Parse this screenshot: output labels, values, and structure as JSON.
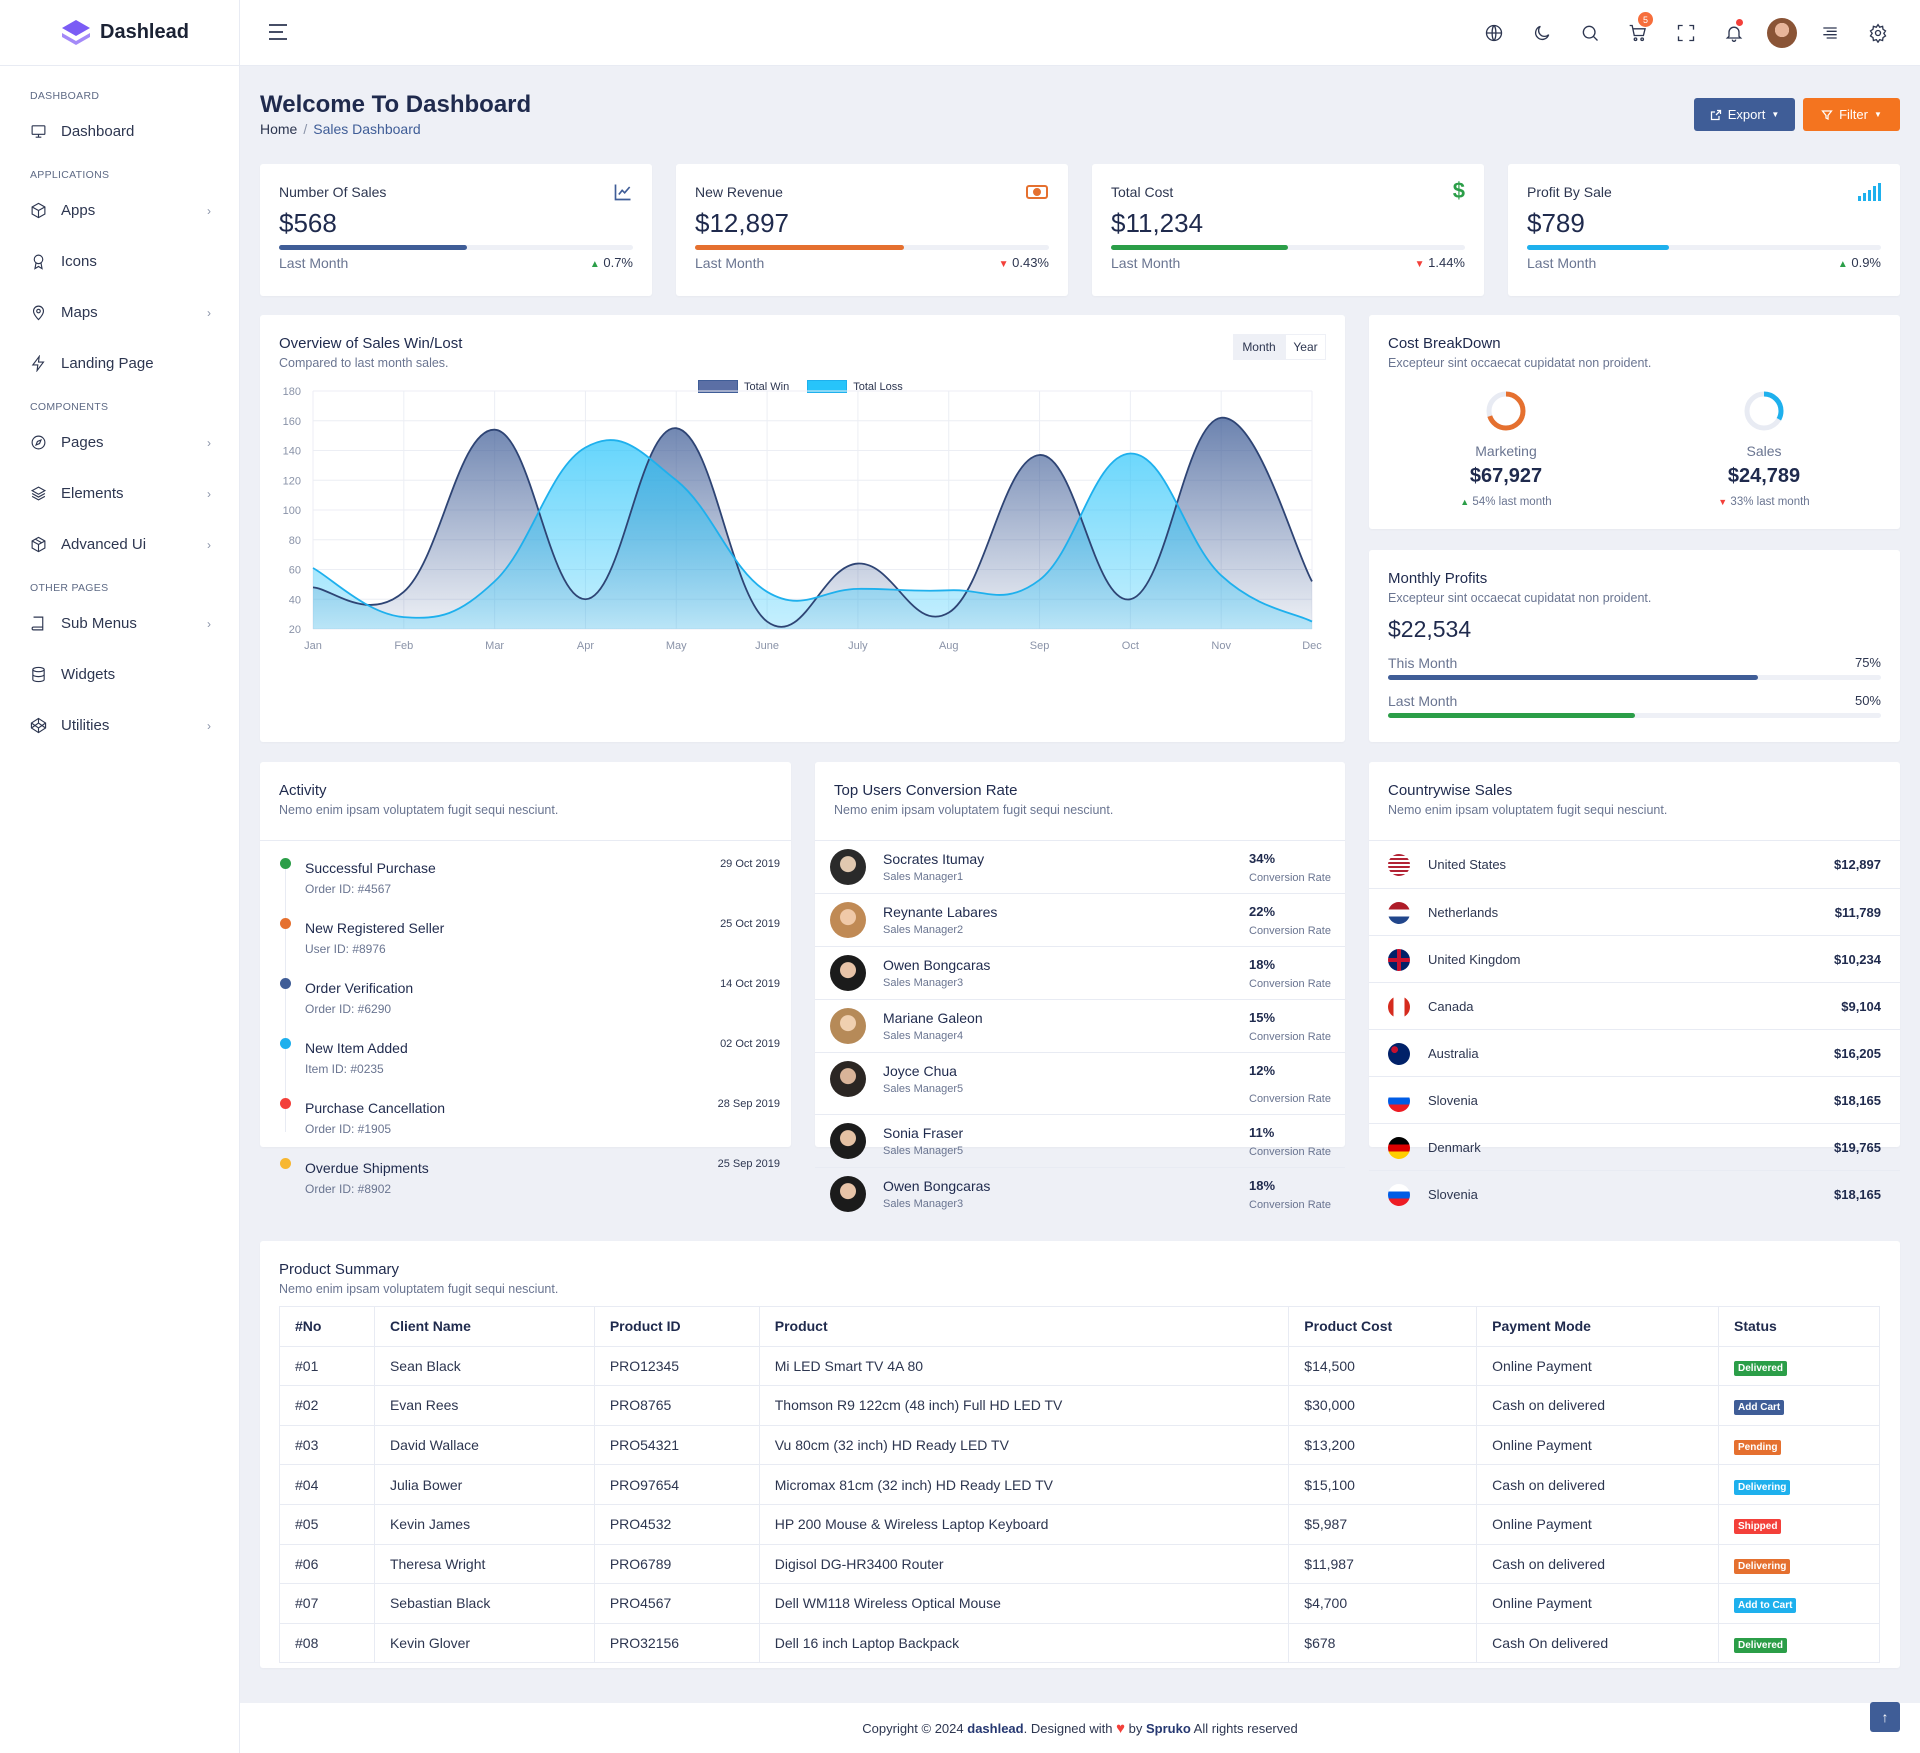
{
  "app": {
    "name": "Dashlead"
  },
  "sidebar": {
    "cat_dashboard": "DASHBOARD",
    "dashboard": "Dashboard",
    "cat_applications": "APPLICATIONS",
    "apps": "Apps",
    "icons": "Icons",
    "maps": "Maps",
    "landing": "Landing Page",
    "cat_components": "COMPONENTS",
    "pages": "Pages",
    "elements": "Elements",
    "advanced": "Advanced Ui",
    "cat_other": "OTHER PAGES",
    "submenus": "Sub Menus",
    "widgets": "Widgets",
    "utilities": "Utilities"
  },
  "topbar": {
    "cart_count": "5"
  },
  "page": {
    "title": "Welcome To Dashboard",
    "crumb_home": "Home",
    "crumb_sep": "/",
    "crumb_active": "Sales Dashboard",
    "export": "Export",
    "filter": "Filter"
  },
  "kpis": [
    {
      "label": "Number Of Sales",
      "value": "$568",
      "sub": "Last Month",
      "change": "0.7%",
      "trend": "up",
      "progress": 0.53,
      "color": "#3f5d97"
    },
    {
      "label": "New Revenue",
      "value": "$12,897",
      "sub": "Last Month",
      "change": "0.43%",
      "trend": "down",
      "progress": 0.59,
      "color": "#e5702f"
    },
    {
      "label": "Total Cost",
      "value": "$11,234",
      "sub": "Last Month",
      "change": "1.44%",
      "trend": "down",
      "progress": 0.5,
      "color": "#2b9e48"
    },
    {
      "label": "Profit By Sale",
      "value": "$789",
      "sub": "Last Month",
      "change": "0.9%",
      "trend": "up",
      "progress": 0.4,
      "color": "#1eb0ed"
    }
  ],
  "overview": {
    "title": "Overview of Sales Win/Lost",
    "subtitle": "Compared to last month sales.",
    "tab_month": "Month",
    "tab_year": "Year"
  },
  "chart_data": {
    "type": "area",
    "categories": [
      "Jan",
      "Feb",
      "Mar",
      "Apr",
      "May",
      "June",
      "July",
      "Aug",
      "Sep",
      "Oct",
      "Nov",
      "Dec"
    ],
    "series": [
      {
        "name": "Total Win",
        "color": "#3f5d97",
        "values": [
          48,
          45,
          154,
          40,
          155,
          25,
          64,
          31,
          137,
          40,
          162,
          52
        ]
      },
      {
        "name": "Total Loss",
        "color": "#27c4fa",
        "values": [
          61,
          28,
          52,
          142,
          120,
          45,
          47,
          46,
          53,
          138,
          56,
          25
        ]
      }
    ],
    "ylim": [
      20,
      180
    ],
    "yticks": [
      "180",
      "160",
      "140",
      "120",
      "100",
      "80",
      "60",
      "40",
      "20"
    ],
    "grid": true,
    "legend": "top-center"
  },
  "breakdown": {
    "title": "Cost BreakDown",
    "subtitle": "Excepteur sint occaecat cupidatat non proident.",
    "items": [
      {
        "label": "Marketing",
        "value": "$67,927",
        "change": "54% last month",
        "trend": "up",
        "pct": 0.7,
        "color": "#e5702f"
      },
      {
        "label": "Sales",
        "value": "$24,789",
        "change": "33% last month",
        "trend": "down",
        "pct": 0.33,
        "color": "#1eb0ed"
      }
    ]
  },
  "profits": {
    "title": "Monthly Profits",
    "subtitle": "Excepteur sint occaecat cupidatat non proident.",
    "value": "$22,534",
    "rows": [
      {
        "label": "This Month",
        "pct": "75%",
        "fill": 0.75,
        "color": "#3f5d97"
      },
      {
        "label": "Last Month",
        "pct": "50%",
        "fill": 0.5,
        "color": "#2b9e48"
      }
    ]
  },
  "activity": {
    "title": "Activity",
    "subtitle": "Nemo enim ipsam voluptatem fugit sequi nesciunt.",
    "items": [
      {
        "title": "Successful Purchase",
        "sub": "Order ID: #4567",
        "date": "29 Oct 2019",
        "color": "#2b9e48"
      },
      {
        "title": "New Registered Seller",
        "sub": "User ID: #8976",
        "date": "25 Oct 2019",
        "color": "#e5702f"
      },
      {
        "title": "Order Verification",
        "sub": "Order ID: #6290",
        "date": "14 Oct 2019",
        "color": "#3f5d97"
      },
      {
        "title": "New Item Added",
        "sub": "Item ID: #0235",
        "date": "02 Oct 2019",
        "color": "#1eb0ed"
      },
      {
        "title": "Purchase Cancellation",
        "sub": "Order ID: #1905",
        "date": "28 Sep 2019",
        "color": "#f3403a"
      },
      {
        "title": "Overdue Shipments",
        "sub": "Order ID: #8902",
        "date": "25 Sep 2019",
        "color": "#f7b731"
      }
    ]
  },
  "users": {
    "title": "Top Users Conversion Rate",
    "subtitle": "Nemo enim ipsam voluptatem fugit sequi nesciunt.",
    "conv_label": "Conversion Rate",
    "items": [
      {
        "name": "Socrates Itumay",
        "role": "Sales Manager1",
        "pct": "34%"
      },
      {
        "name": "Reynante Labares",
        "role": "Sales Manager2",
        "pct": "22%"
      },
      {
        "name": "Owen Bongcaras",
        "role": "Sales Manager3",
        "pct": "18%"
      },
      {
        "name": "Mariane Galeon",
        "role": "Sales Manager4",
        "pct": "15%"
      },
      {
        "name": "Joyce Chua",
        "role": "Sales Manager5",
        "pct": "12%"
      },
      {
        "name": "Sonia Fraser",
        "role": "Sales Manager5",
        "pct": "11%"
      },
      {
        "name": "Owen Bongcaras",
        "role": "Sales Manager3",
        "pct": "18%"
      }
    ]
  },
  "countries": {
    "title": "Countrywise Sales",
    "subtitle": "Nemo enim ipsam voluptatem fugit sequi nesciunt.",
    "items": [
      {
        "name": "United States",
        "amount": "$12,897"
      },
      {
        "name": "Netherlands",
        "amount": "$11,789"
      },
      {
        "name": "United Kingdom",
        "amount": "$10,234"
      },
      {
        "name": "Canada",
        "amount": "$9,104"
      },
      {
        "name": "Australia",
        "amount": "$16,205"
      },
      {
        "name": "Slovenia",
        "amount": "$18,165"
      },
      {
        "name": "Denmark",
        "amount": "$19,765"
      },
      {
        "name": "Slovenia",
        "amount": "$18,165"
      }
    ]
  },
  "products": {
    "title": "Product Summary",
    "subtitle": "Nemo enim ipsam voluptatem fugit sequi nesciunt.",
    "headers": [
      "#No",
      "Client Name",
      "Product ID",
      "Product",
      "Product Cost",
      "Payment Mode",
      "Status"
    ],
    "rows": [
      {
        "no": "#01",
        "client": "Sean Black",
        "pid": "PRO12345",
        "product": "Mi LED Smart TV 4A 80",
        "cost": "$14,500",
        "payment": "Online Payment",
        "status": "Delivered",
        "color": "#2b9e48"
      },
      {
        "no": "#02",
        "client": "Evan Rees",
        "pid": "PRO8765",
        "product": "Thomson R9 122cm (48 inch) Full HD LED TV",
        "cost": "$30,000",
        "payment": "Cash on delivered",
        "status": "Add Cart",
        "color": "#3f5d97"
      },
      {
        "no": "#03",
        "client": "David Wallace",
        "pid": "PRO54321",
        "product": "Vu 80cm (32 inch) HD Ready LED TV",
        "cost": "$13,200",
        "payment": "Online Payment",
        "status": "Pending",
        "color": "#e5702f"
      },
      {
        "no": "#04",
        "client": "Julia Bower",
        "pid": "PRO97654",
        "product": "Micromax 81cm (32 inch) HD Ready LED TV",
        "cost": "$15,100",
        "payment": "Cash on delivered",
        "status": "Delivering",
        "color": "#1eb0ed"
      },
      {
        "no": "#05",
        "client": "Kevin James",
        "pid": "PRO4532",
        "product": "HP 200 Mouse & Wireless Laptop Keyboard",
        "cost": "$5,987",
        "payment": "Online Payment",
        "status": "Shipped",
        "color": "#f3403a"
      },
      {
        "no": "#06",
        "client": "Theresa Wright",
        "pid": "PRO6789",
        "product": "Digisol DG-HR3400 Router",
        "cost": "$11,987",
        "payment": "Cash on delivered",
        "status": "Delivering",
        "color": "#e5702f"
      },
      {
        "no": "#07",
        "client": "Sebastian Black",
        "pid": "PRO4567",
        "product": "Dell WM118 Wireless Optical Mouse",
        "cost": "$4,700",
        "payment": "Online Payment",
        "status": "Add to Cart",
        "color": "#1eb0ed"
      },
      {
        "no": "#08",
        "client": "Kevin Glover",
        "pid": "PRO32156",
        "product": "Dell 16 inch Laptop Backpack",
        "cost": "$678",
        "payment": "Cash On delivered",
        "status": "Delivered",
        "color": "#2b9e48"
      }
    ]
  },
  "footer": {
    "pre": "Copyright © 2024 ",
    "brand": "dashlead",
    "mid": ". Designed with ",
    "by": " by ",
    "author": "Spruko",
    "post": " All rights reserved"
  }
}
